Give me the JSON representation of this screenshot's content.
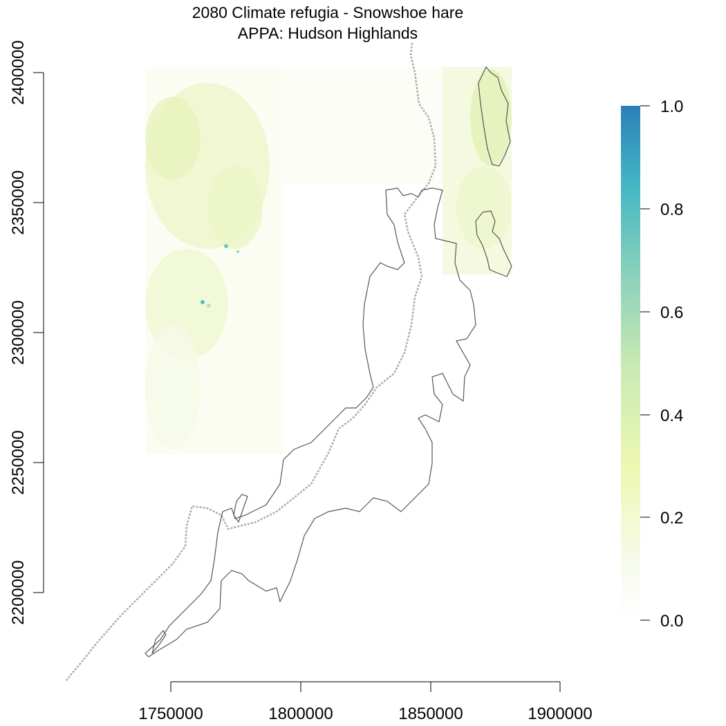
{
  "map": {
    "title_line1": "2080 Climate refugia - Snowshoe hare",
    "title_line2": "APPA: Hudson Highlands",
    "x_axis": {
      "ticks": [
        1750000,
        1800000,
        1850000,
        1900000
      ],
      "labels": [
        "1750000",
        "1800000",
        "1850000",
        "1900000"
      ]
    },
    "y_axis": {
      "ticks": [
        2200000,
        2250000,
        2300000,
        2350000,
        2400000
      ],
      "labels": [
        "2200000",
        "2250000",
        "2300000",
        "2350000",
        "2400000"
      ]
    },
    "legend": {
      "min": 0.0,
      "max": 1.0,
      "ticks": [
        0.0,
        0.2,
        0.4,
        0.6,
        0.8,
        1.0
      ],
      "labels": [
        "0.0",
        "0.2",
        "0.4",
        "0.6",
        "0.8",
        "1.0"
      ],
      "colors": [
        "#ffffff",
        "#f7fbef",
        "#edf8b1",
        "#c7e9b4",
        "#7fcdbb",
        "#41b6c4",
        "#2c7fb8"
      ]
    },
    "layers": {
      "refugia_raster_color": "#eef5c8",
      "boundary_color": "#555555",
      "dashed_line_color": "#aaaaaa"
    }
  }
}
